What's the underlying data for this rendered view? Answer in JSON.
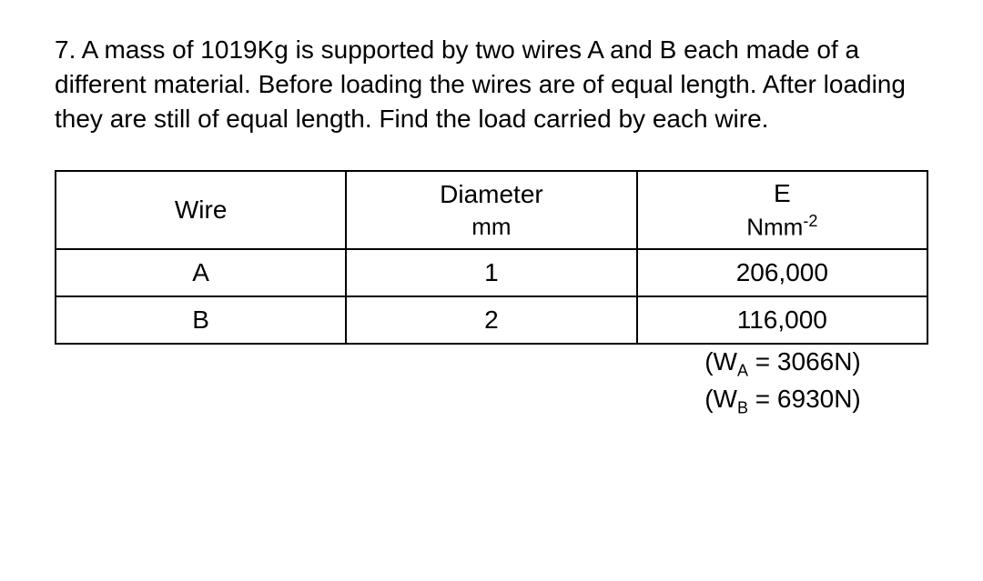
{
  "question": {
    "number": "7.",
    "text": "A mass of 1019Kg is supported by two wires A and B each made of a different material.  Before loading the wires are of equal length.  After loading they are still of equal length.  Find the load carried by each wire."
  },
  "table": {
    "headers": {
      "col1": "Wire",
      "col2_line1": "Diameter",
      "col2_line2": "mm",
      "col3_line1": "E",
      "col3_line2_prefix": "Nmm",
      "col3_line2_sup": "-2"
    },
    "rows": [
      {
        "wire": "A",
        "diameter": "1",
        "modulus": "206,000"
      },
      {
        "wire": "B",
        "diameter": "2",
        "modulus": "116,000"
      }
    ]
  },
  "answers": {
    "a_label_prefix": "(W",
    "a_label_sub": "A",
    "a_label_eq": " = ",
    "a_value": "3066N)",
    "b_label_prefix": "(W",
    "b_label_sub": "B",
    "b_label_eq": " = ",
    "b_value": "6930N)"
  }
}
